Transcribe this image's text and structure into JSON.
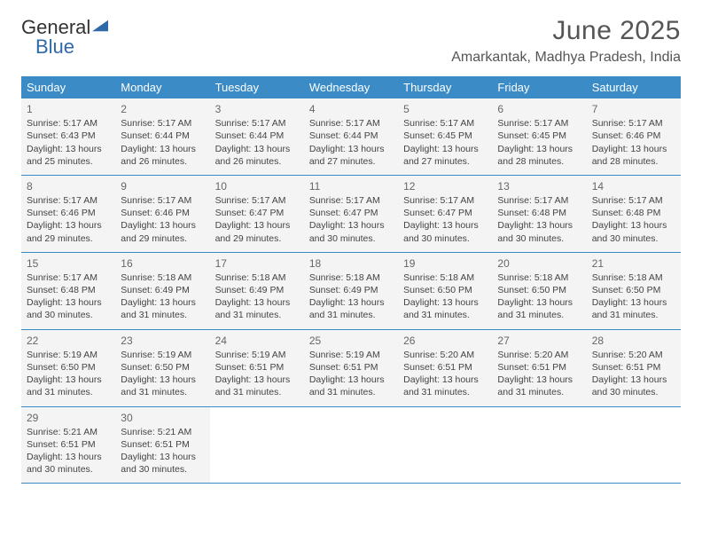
{
  "logo": {
    "text_general": "General",
    "text_blue": "Blue",
    "triangle_color": "#2f6aa8"
  },
  "header": {
    "month_title": "June 2025",
    "location": "Amarkantak, Madhya Pradesh, India"
  },
  "colors": {
    "header_bar": "#3b8bc6",
    "cell_bg": "#f4f4f4",
    "week_border": "#3b8bc6",
    "text": "#444444",
    "title_text": "#555555"
  },
  "day_headers": [
    "Sunday",
    "Monday",
    "Tuesday",
    "Wednesday",
    "Thursday",
    "Friday",
    "Saturday"
  ],
  "weeks": [
    [
      {
        "n": "1",
        "sr": "5:17 AM",
        "ss": "6:43 PM",
        "dl": "13 hours and 25 minutes."
      },
      {
        "n": "2",
        "sr": "5:17 AM",
        "ss": "6:44 PM",
        "dl": "13 hours and 26 minutes."
      },
      {
        "n": "3",
        "sr": "5:17 AM",
        "ss": "6:44 PM",
        "dl": "13 hours and 26 minutes."
      },
      {
        "n": "4",
        "sr": "5:17 AM",
        "ss": "6:44 PM",
        "dl": "13 hours and 27 minutes."
      },
      {
        "n": "5",
        "sr": "5:17 AM",
        "ss": "6:45 PM",
        "dl": "13 hours and 27 minutes."
      },
      {
        "n": "6",
        "sr": "5:17 AM",
        "ss": "6:45 PM",
        "dl": "13 hours and 28 minutes."
      },
      {
        "n": "7",
        "sr": "5:17 AM",
        "ss": "6:46 PM",
        "dl": "13 hours and 28 minutes."
      }
    ],
    [
      {
        "n": "8",
        "sr": "5:17 AM",
        "ss": "6:46 PM",
        "dl": "13 hours and 29 minutes."
      },
      {
        "n": "9",
        "sr": "5:17 AM",
        "ss": "6:46 PM",
        "dl": "13 hours and 29 minutes."
      },
      {
        "n": "10",
        "sr": "5:17 AM",
        "ss": "6:47 PM",
        "dl": "13 hours and 29 minutes."
      },
      {
        "n": "11",
        "sr": "5:17 AM",
        "ss": "6:47 PM",
        "dl": "13 hours and 30 minutes."
      },
      {
        "n": "12",
        "sr": "5:17 AM",
        "ss": "6:47 PM",
        "dl": "13 hours and 30 minutes."
      },
      {
        "n": "13",
        "sr": "5:17 AM",
        "ss": "6:48 PM",
        "dl": "13 hours and 30 minutes."
      },
      {
        "n": "14",
        "sr": "5:17 AM",
        "ss": "6:48 PM",
        "dl": "13 hours and 30 minutes."
      }
    ],
    [
      {
        "n": "15",
        "sr": "5:17 AM",
        "ss": "6:48 PM",
        "dl": "13 hours and 30 minutes."
      },
      {
        "n": "16",
        "sr": "5:18 AM",
        "ss": "6:49 PM",
        "dl": "13 hours and 31 minutes."
      },
      {
        "n": "17",
        "sr": "5:18 AM",
        "ss": "6:49 PM",
        "dl": "13 hours and 31 minutes."
      },
      {
        "n": "18",
        "sr": "5:18 AM",
        "ss": "6:49 PM",
        "dl": "13 hours and 31 minutes."
      },
      {
        "n": "19",
        "sr": "5:18 AM",
        "ss": "6:50 PM",
        "dl": "13 hours and 31 minutes."
      },
      {
        "n": "20",
        "sr": "5:18 AM",
        "ss": "6:50 PM",
        "dl": "13 hours and 31 minutes."
      },
      {
        "n": "21",
        "sr": "5:18 AM",
        "ss": "6:50 PM",
        "dl": "13 hours and 31 minutes."
      }
    ],
    [
      {
        "n": "22",
        "sr": "5:19 AM",
        "ss": "6:50 PM",
        "dl": "13 hours and 31 minutes."
      },
      {
        "n": "23",
        "sr": "5:19 AM",
        "ss": "6:50 PM",
        "dl": "13 hours and 31 minutes."
      },
      {
        "n": "24",
        "sr": "5:19 AM",
        "ss": "6:51 PM",
        "dl": "13 hours and 31 minutes."
      },
      {
        "n": "25",
        "sr": "5:19 AM",
        "ss": "6:51 PM",
        "dl": "13 hours and 31 minutes."
      },
      {
        "n": "26",
        "sr": "5:20 AM",
        "ss": "6:51 PM",
        "dl": "13 hours and 31 minutes."
      },
      {
        "n": "27",
        "sr": "5:20 AM",
        "ss": "6:51 PM",
        "dl": "13 hours and 31 minutes."
      },
      {
        "n": "28",
        "sr": "5:20 AM",
        "ss": "6:51 PM",
        "dl": "13 hours and 30 minutes."
      }
    ],
    [
      {
        "n": "29",
        "sr": "5:21 AM",
        "ss": "6:51 PM",
        "dl": "13 hours and 30 minutes."
      },
      {
        "n": "30",
        "sr": "5:21 AM",
        "ss": "6:51 PM",
        "dl": "13 hours and 30 minutes."
      },
      null,
      null,
      null,
      null,
      null
    ]
  ],
  "labels": {
    "sunrise_prefix": "Sunrise: ",
    "sunset_prefix": "Sunset: ",
    "daylight_prefix": "Daylight: "
  }
}
